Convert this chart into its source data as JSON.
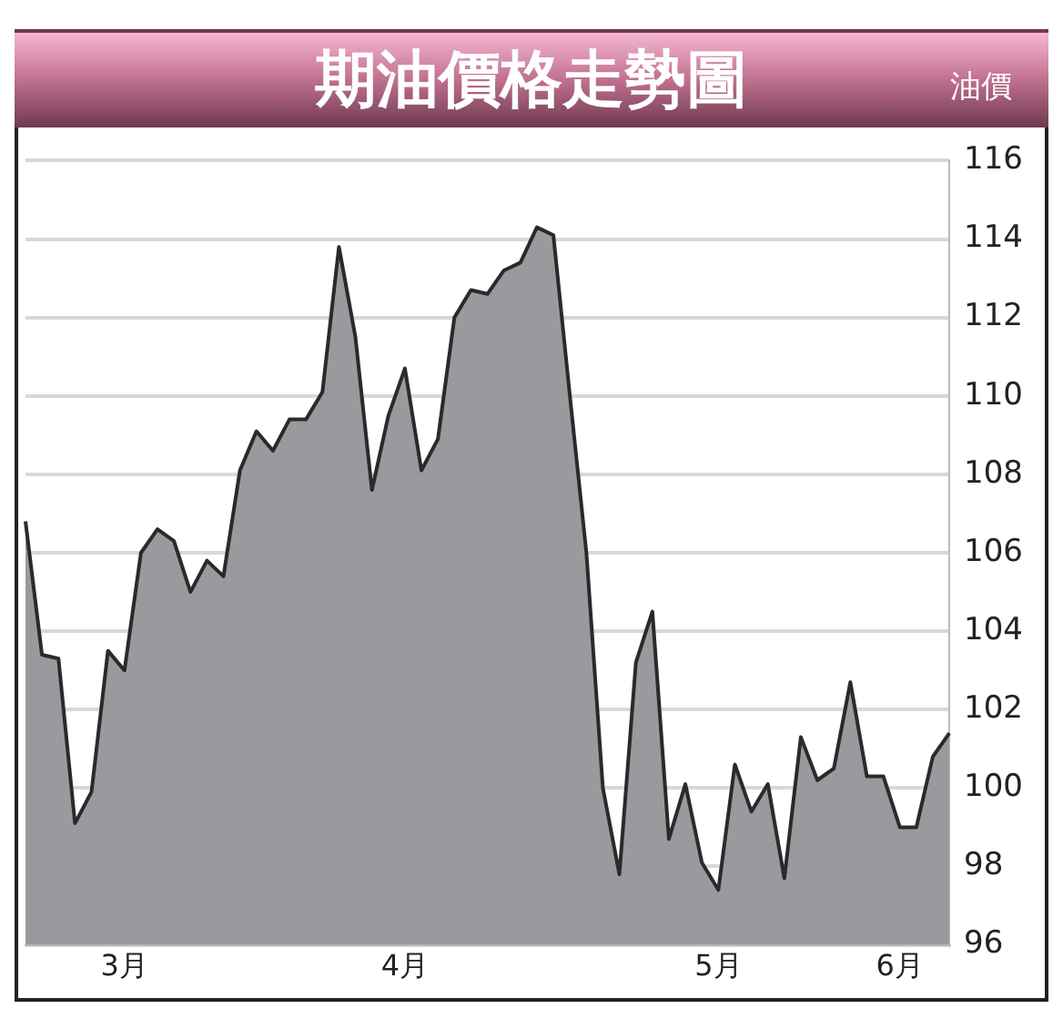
{
  "chart_data": {
    "type": "area",
    "title": "期油價格走勢圖",
    "subtitle": "油價",
    "categories": [
      null,
      null,
      null,
      null,
      null,
      null,
      "3月",
      null,
      null,
      null,
      null,
      null,
      null,
      null,
      null,
      null,
      null,
      null,
      null,
      null,
      null,
      null,
      null,
      "4月",
      null,
      null,
      null,
      null,
      null,
      null,
      null,
      null,
      null,
      null,
      null,
      null,
      null,
      null,
      null,
      null,
      null,
      null,
      "5月",
      null,
      null,
      null,
      null,
      null,
      null,
      null,
      null,
      null,
      null,
      "6月",
      null,
      null,
      null
    ],
    "series": [
      {
        "color": "#9a9a9e",
        "values": [
          106.8,
          103.4,
          103.3,
          99.1,
          99.9,
          103.5,
          103.0,
          106.0,
          106.6,
          106.3,
          105.0,
          105.8,
          105.4,
          108.1,
          109.1,
          108.6,
          109.4,
          109.4,
          110.1,
          113.8,
          111.5,
          107.6,
          109.5,
          110.7,
          108.1,
          108.9,
          112.0,
          112.7,
          112.6,
          113.2,
          113.4,
          114.3,
          114.1,
          110.0,
          106.0,
          100.0,
          97.8,
          103.2,
          104.5,
          98.7,
          100.1,
          98.1,
          97.4,
          100.6,
          99.4,
          100.1,
          97.7,
          101.3,
          100.2,
          100.5,
          102.7,
          100.3,
          100.3,
          99.0,
          99.0,
          100.8,
          101.4
        ]
      }
    ],
    "ylim": [
      96,
      116
    ],
    "yticks": [
      96,
      98,
      100,
      102,
      104,
      106,
      108,
      110,
      112,
      114,
      116
    ],
    "grid": "y",
    "legend": false,
    "marker": "none",
    "line_style": "solid"
  }
}
